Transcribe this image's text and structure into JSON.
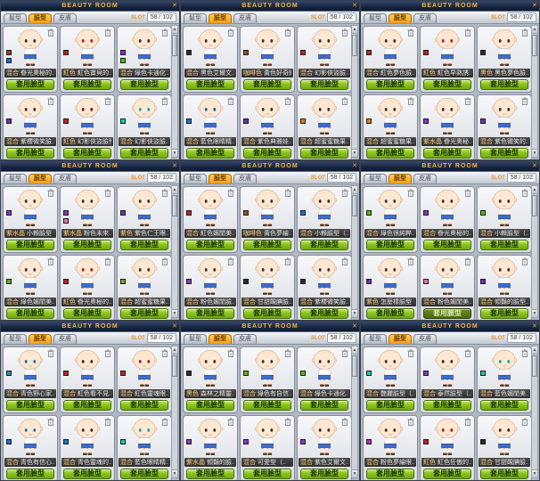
{
  "window": {
    "title": "BEAUTY ROOM",
    "close_glyph": "✕",
    "tabs": [
      {
        "label": "髮型",
        "active": false
      },
      {
        "label": "臉型",
        "active": true
      },
      {
        "label": "皮膚",
        "active": false
      }
    ],
    "slot_label": "SLOT",
    "slot_count": "58 / 102",
    "apply_label": "套用臉型",
    "scroll_up_glyph": "▲",
    "scroll_down_glyph": "▼",
    "colors": {
      "title_text": "#f6b437",
      "tab_active": "#f79b16",
      "button_green": "#8cc41e",
      "label_category": "#ffcf7d",
      "label_name": "#e8e8e8"
    }
  },
  "panels": [
    {
      "cells": [
        {
          "cat": "混合",
          "name": "眷光奧秘的..",
          "chips": [
            "#8a4a1e",
            "#1f6fd0"
          ]
        },
        {
          "cat": "紅色",
          "name": "紅色寶貝的..",
          "chips": [
            "#c42020"
          ],
          "eyes": "#b02020"
        },
        {
          "cat": "混合",
          "name": "綠色卡通化..",
          "chips": [
            "#7a2fd6",
            "#59b614"
          ]
        },
        {
          "cat": "混合",
          "name": "紫櫻微笑臉..",
          "chips": [
            "#6d2fb8"
          ]
        },
        {
          "cat": "紅色",
          "name": "幻影俠盜臉型",
          "chips": [
            "#c42020"
          ],
          "eyes": "#8a1515"
        },
        {
          "cat": "混合",
          "name": "幻影俠盜臉..",
          "chips": [
            "#19c9b4"
          ],
          "eyes": "#18a89a"
        }
      ]
    },
    {
      "cells": [
        {
          "cat": "混合",
          "name": "黑色艾爾文..",
          "chips": [
            "#2b2b2b"
          ]
        },
        {
          "cat": "咖啡色",
          "name": "黃色好奇納..",
          "chips": [
            "#8b571e"
          ]
        },
        {
          "cat": "混合",
          "name": "幻影俠盜臉..",
          "chips": [
            "#c42020"
          ]
        },
        {
          "cat": "混合",
          "name": "藍色眼睛精..",
          "chips": [
            "#1f6fd0"
          ],
          "eyes": "#1f5fb0"
        },
        {
          "cat": "混合",
          "name": "紫色典雅娃..",
          "chips": [
            "#6d2fb8"
          ]
        },
        {
          "cat": "混合",
          "name": "超蜜蜜糖果..",
          "chips": [
            "#e07818"
          ]
        }
      ]
    },
    {
      "cells": [
        {
          "cat": "混合",
          "name": "紅色夢色臉..",
          "chips": [
            "#c42020"
          ]
        },
        {
          "cat": "紅色",
          "name": "紅色早熟誘..",
          "chips": [
            "#c42020"
          ],
          "eyes": "#b02020"
        },
        {
          "cat": "黑色",
          "name": "黑色夢色臉..",
          "chips": [
            "#2b2b2b"
          ]
        },
        {
          "cat": "混合",
          "name": "超蜜蜜糖果..",
          "chips": [
            "#e07818"
          ]
        },
        {
          "cat": "紫水晶",
          "name": "眷光奧秘..",
          "chips": [
            "#8a35c9"
          ]
        },
        {
          "cat": "混合",
          "name": "紫色微笑的..",
          "chips": [
            "#6d2fb8"
          ]
        }
      ]
    },
    {
      "cells": [
        {
          "cat": "紫水晶",
          "name": "小賴臉型",
          "chips": [
            "#8a35c9"
          ]
        },
        {
          "cat": "紫水晶",
          "name": "粉色未來..",
          "chips": [
            "#8a35c9",
            "#e86fa8"
          ]
        },
        {
          "cat": "紫色",
          "name": "紫色仁王眼..",
          "chips": [
            "#6d2fb8"
          ]
        },
        {
          "cat": "混合",
          "name": "綠色媚閨美..",
          "chips": [
            "#59b614"
          ]
        },
        {
          "cat": "紅色",
          "name": "眷光奧秘的..",
          "chips": [
            "#c42020"
          ],
          "eyes": "#b02020"
        },
        {
          "cat": "混合",
          "name": "超蜜蜜糖果..",
          "chips": [
            "#7da01e"
          ]
        }
      ]
    },
    {
      "cells": [
        {
          "cat": "混合",
          "name": "紅色媚閨美..",
          "chips": [
            "#c42020"
          ]
        },
        {
          "cat": "咖啡色",
          "name": "黃色夢繪..",
          "chips": [
            "#8b571e"
          ]
        },
        {
          "cat": "混合",
          "name": "小賴臉型（..",
          "chips": [
            "#1f6fd0"
          ]
        },
        {
          "cat": "混合",
          "name": "粉色媚閨臉..",
          "chips": [
            "#8a35c9"
          ]
        },
        {
          "cat": "混合",
          "name": "甘甜靦腆臉..",
          "chips": [
            "#2b2b2b"
          ]
        },
        {
          "cat": "混合",
          "name": "紫櫻微笑臉..",
          "chips": [
            "#2b2b2b"
          ]
        }
      ]
    },
    {
      "cells": [
        {
          "cat": "混合",
          "name": "綠色很純粹..",
          "chips": [
            "#59b614"
          ]
        },
        {
          "cat": "混合",
          "name": "眷光奧秘的..",
          "chips": [
            "#8a35c9"
          ]
        },
        {
          "cat": "混合",
          "name": "小賴臉型（..",
          "chips": [
            "#59b614"
          ]
        },
        {
          "cat": "紫色",
          "name": "怎麼樣臉型",
          "chips": [
            "#6d2fb8"
          ]
        },
        {
          "cat": "混合",
          "name": "粉色媚閨美..",
          "chips": [
            "#e86fa8"
          ],
          "pressed": true
        },
        {
          "cat": "混合",
          "name": "傾豔的臉型..",
          "chips": [
            "#6d2fb8"
          ]
        }
      ]
    },
    {
      "cells": [
        {
          "cat": "混合",
          "name": "青色野心家..",
          "chips": [
            "#1f8fd0"
          ],
          "eyes": "#1f6fb0"
        },
        {
          "cat": "混合",
          "name": "紅色看不見..",
          "chips": [
            "#c42020"
          ]
        },
        {
          "cat": "混合",
          "name": "紅色靈魂眼..",
          "chips": [
            "#c42020"
          ],
          "eyes": "#b02020"
        },
        {
          "cat": "混合",
          "name": "青色有信心..",
          "chips": [
            "#1f6fd0"
          ],
          "eyes": "#1f6fb0"
        },
        {
          "cat": "混合",
          "name": "青色靈魂的..",
          "chips": [
            "#1f6fd0"
          ]
        },
        {
          "cat": "混合",
          "name": "藍色眼睛精..",
          "chips": [
            "#19c9a0"
          ],
          "eyes": "#18a89a"
        }
      ]
    },
    {
      "cells": [
        {
          "cat": "黑色",
          "name": "森林之精靈..",
          "chips": [
            "#2b2b2b"
          ]
        },
        {
          "cat": "混合",
          "name": "綠色有自信..",
          "chips": [
            "#59b614"
          ]
        },
        {
          "cat": "混合",
          "name": "綠色卡通化..",
          "chips": [
            "#59b614"
          ]
        },
        {
          "cat": "紫水晶",
          "name": "傾豔的臉..",
          "chips": [
            "#8a35c9"
          ]
        },
        {
          "cat": "混合",
          "name": "可愛型（..",
          "chips": [
            "#8a35c9"
          ]
        },
        {
          "cat": "混合",
          "name": "紫色艾爾文..",
          "chips": [
            "#8a35c9"
          ]
        }
      ]
    },
    {
      "cells": [
        {
          "cat": "混合",
          "name": "艷麗臉型（..",
          "chips": [
            "#19c9b4"
          ]
        },
        {
          "cat": "混合",
          "name": "泰然臉型（..",
          "chips": [
            "#8a35c9"
          ]
        },
        {
          "cat": "混合",
          "name": "藍色媚閨美..",
          "chips": [
            "#19c9b4"
          ],
          "eyes": "#18a89a"
        },
        {
          "cat": "混合",
          "name": "粉色夢繪眼..",
          "chips": [
            "#b02fb8"
          ]
        },
        {
          "cat": "紅色",
          "name": "紅色狂傲的..",
          "chips": [
            "#c42020"
          ],
          "eyes": "#b02020"
        },
        {
          "cat": "混合",
          "name": "甘甜靦腆臉..",
          "chips": [
            "#2b2b2b"
          ]
        }
      ]
    }
  ]
}
